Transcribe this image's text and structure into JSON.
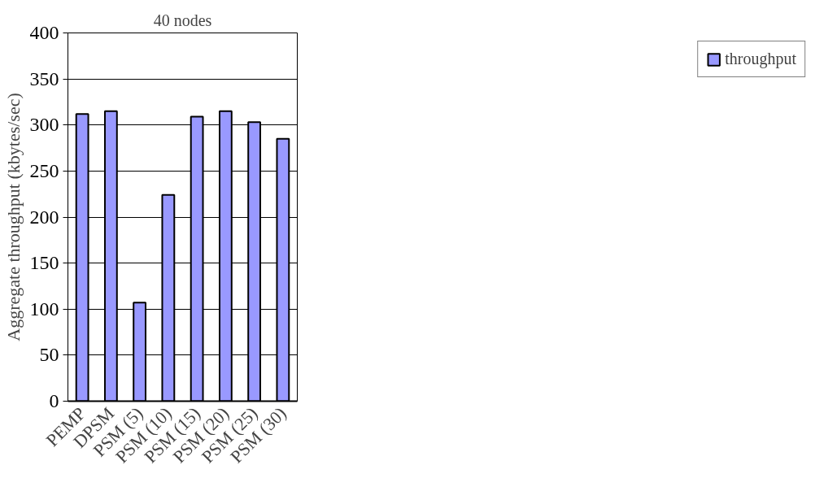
{
  "chart_data": {
    "type": "bar",
    "title": "40 nodes",
    "ylabel": "Aggregate throughput (kbytes/sec)",
    "categories": [
      "PEMP",
      "DPSM",
      "PSM (5)",
      "PSM (10)",
      "PSM (15)",
      "PSM (20)",
      "PSM (25)",
      "PSM (30)"
    ],
    "series": [
      {
        "name": "throughput",
        "color": "#9999ff",
        "values": [
          312,
          315,
          107,
          224,
          309,
          315,
          303,
          285
        ]
      }
    ],
    "ylim": [
      0,
      400
    ],
    "yticks": [
      0,
      50,
      100,
      150,
      200,
      250,
      300,
      350,
      400
    ],
    "grid": "y",
    "legend": "right"
  }
}
